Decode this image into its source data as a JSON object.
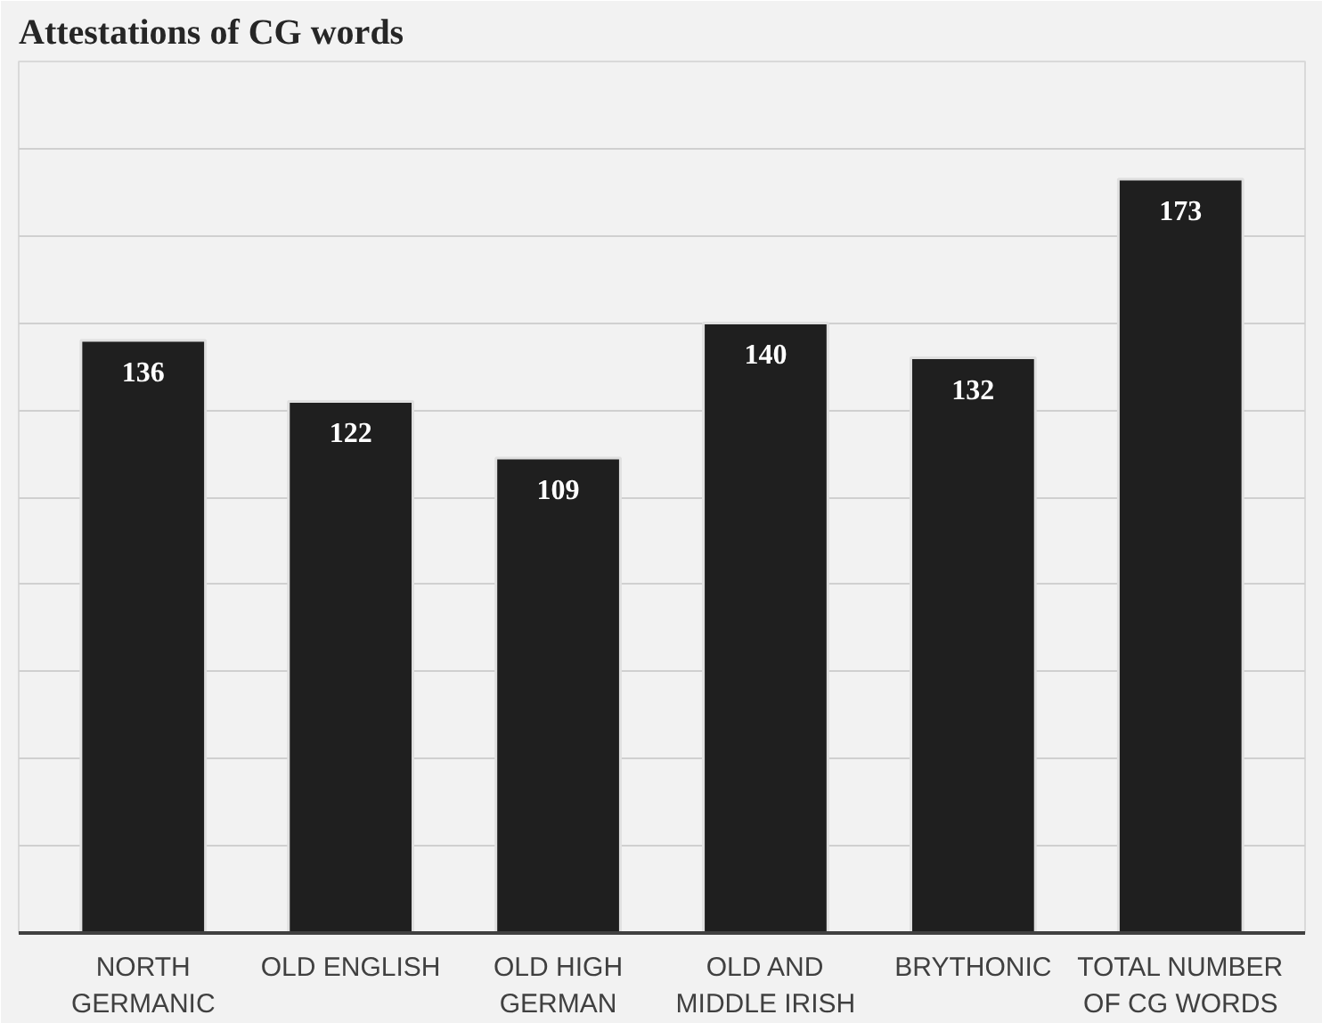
{
  "chart_data": {
    "type": "bar",
    "title": "Attestations of CG words",
    "categories": [
      "NORTH GERMANIC",
      "OLD ENGLISH",
      "OLD HIGH GERMAN",
      "OLD AND MIDDLE IRISH",
      "BRYTHONIC",
      "TOTAL NUMBER OF CG WORDS"
    ],
    "values": [
      136,
      122,
      109,
      140,
      132,
      173
    ],
    "color": "#1f1f1f",
    "ylim": [
      0,
      200
    ],
    "yticks": [
      {
        "value": 0,
        "label": null
      },
      {
        "value": 20,
        "label": null
      },
      {
        "value": 40,
        "label": null
      },
      {
        "value": 60,
        "label": null
      },
      {
        "value": 80,
        "label": null
      },
      {
        "value": 100,
        "label": null
      },
      {
        "value": 120,
        "label": null
      },
      {
        "value": 140,
        "label": null
      },
      {
        "value": 160,
        "label": null
      },
      {
        "value": 180,
        "label": null
      },
      {
        "value": 200,
        "label": null
      }
    ],
    "grid": "y",
    "tick_labels": "x",
    "data_labels": true
  }
}
